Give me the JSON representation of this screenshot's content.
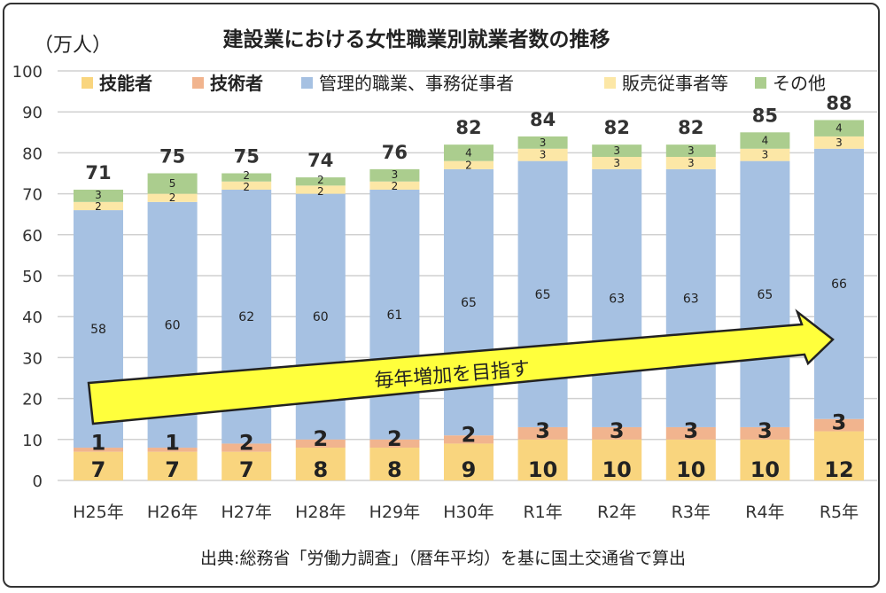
{
  "chart_data": {
    "type": "bar",
    "stacked": true,
    "title": "建設業における女性職業別就業者数の推移",
    "unit_label": "（万人）",
    "categories": [
      "H25年",
      "H26年",
      "H27年",
      "H28年",
      "H29年",
      "H30年",
      "R1年",
      "R2年",
      "R3年",
      "R4年",
      "R5年"
    ],
    "series": [
      {
        "name": "技能者",
        "color": "#f9d57e",
        "values": [
          7,
          7,
          7,
          8,
          8,
          9,
          10,
          10,
          10,
          10,
          12
        ]
      },
      {
        "name": "技術者",
        "color": "#f1b48e",
        "values": [
          1,
          1,
          2,
          2,
          2,
          2,
          3,
          3,
          3,
          3,
          3
        ]
      },
      {
        "name": "管理的職業、事務従事者",
        "color": "#a6c1e2",
        "values": [
          58,
          60,
          62,
          60,
          61,
          65,
          65,
          63,
          63,
          65,
          66
        ]
      },
      {
        "name": "販売従事者等",
        "color": "#fce7a6",
        "values": [
          2,
          2,
          2,
          2,
          2,
          2,
          3,
          3,
          3,
          3,
          3
        ]
      },
      {
        "name": "その他",
        "color": "#abcd8e",
        "values": [
          3,
          5,
          2,
          2,
          3,
          4,
          3,
          3,
          3,
          4,
          4
        ]
      }
    ],
    "totals": [
      71,
      75,
      75,
      74,
      76,
      82,
      84,
      82,
      82,
      85,
      88
    ],
    "ylim": [
      0,
      100
    ],
    "yticks": [
      0,
      10,
      20,
      30,
      40,
      50,
      60,
      70,
      80,
      90,
      100
    ],
    "grid": true,
    "legend": "top",
    "annotation": "毎年増加を目指す",
    "annotation_color": "#ffff3c",
    "source": "出典:総務省「労働力調査」（暦年平均）を基に国土交通省で算出"
  }
}
